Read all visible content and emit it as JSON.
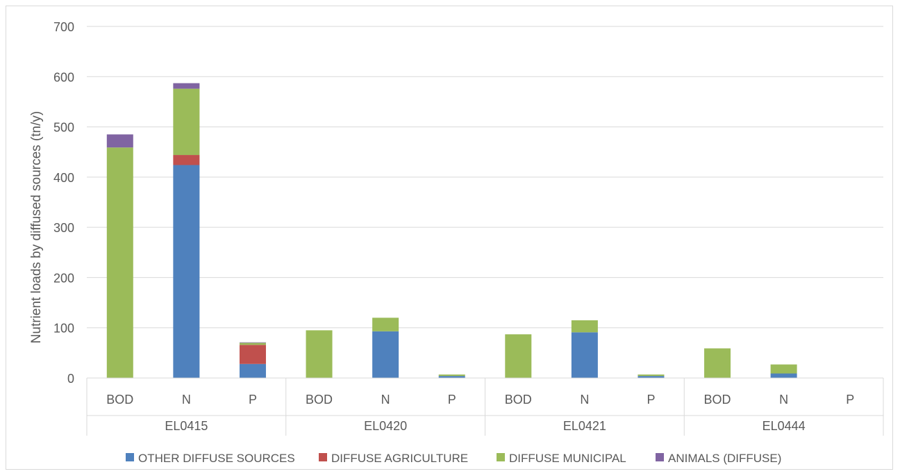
{
  "chart_data": {
    "type": "bar",
    "stacked": true,
    "ylabel": "Nutrient loads by diffused sources (tn/y)",
    "ylim": [
      0,
      700
    ],
    "yticks": [
      0,
      100,
      200,
      300,
      400,
      500,
      600,
      700
    ],
    "grid": true,
    "legend_position": "bottom",
    "groups": [
      {
        "label": "EL0415",
        "categories": [
          "BOD",
          "N",
          "P"
        ]
      },
      {
        "label": "EL0420",
        "categories": [
          "BOD",
          "N",
          "P"
        ]
      },
      {
        "label": "EL0421",
        "categories": [
          "BOD",
          "N",
          "P"
        ]
      },
      {
        "label": "EL0444",
        "categories": [
          "BOD",
          "N",
          "P"
        ]
      }
    ],
    "series": [
      {
        "name": "OTHER DIFFUSE SOURCES",
        "color": "#4f81bd",
        "values": [
          0,
          424,
          28,
          0,
          93,
          4,
          0,
          91,
          4,
          0,
          9,
          0
        ]
      },
      {
        "name": "DIFFUSE AGRICULTURE",
        "color": "#c0504d",
        "values": [
          0,
          20,
          38,
          0,
          0,
          0,
          0,
          0,
          0,
          0,
          0,
          0
        ]
      },
      {
        "name": "DIFFUSE MUNICIPAL",
        "color": "#9bbb59",
        "values": [
          459,
          132,
          4,
          95,
          27,
          3,
          87,
          24,
          3,
          59,
          18,
          0
        ]
      },
      {
        "name": "ANIMALS (DIFFUSE)",
        "color": "#8064a2",
        "values": [
          26,
          11,
          1,
          0,
          0,
          0,
          0,
          0,
          0,
          0,
          0,
          0
        ]
      }
    ]
  }
}
